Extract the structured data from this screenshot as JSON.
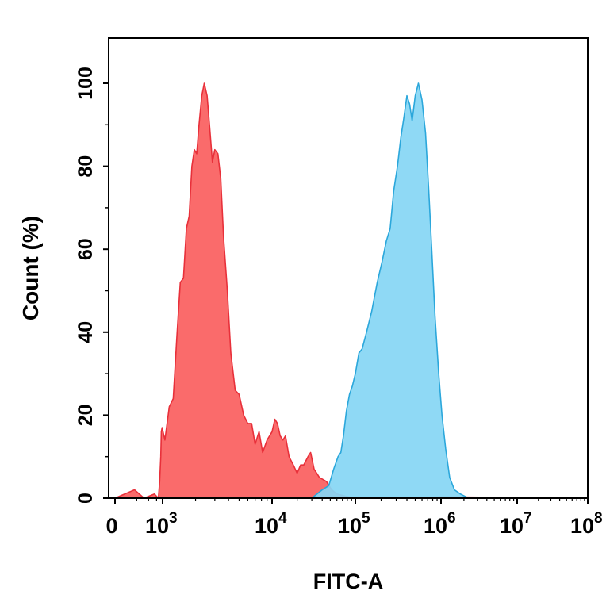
{
  "chart_data": {
    "type": "area",
    "title": "",
    "xlabel": "FITC-A",
    "ylabel": "Count (%)",
    "x_scale": "biexponential (log above 10^3)",
    "xlim": [
      0,
      100000000
    ],
    "ylim": [
      0,
      100
    ],
    "y_ticks": [
      "0",
      "20",
      "40",
      "60",
      "80",
      "100"
    ],
    "x_ticks": [
      {
        "value": 0,
        "base": "0",
        "exp": ""
      },
      {
        "value": 1000,
        "base": "10",
        "exp": "3"
      },
      {
        "value": 10000,
        "base": "10",
        "exp": "4"
      },
      {
        "value": 100000,
        "base": "10",
        "exp": "5"
      },
      {
        "value": 1000000,
        "base": "10",
        "exp": "6"
      },
      {
        "value": 10000000,
        "base": "10",
        "exp": "7"
      },
      {
        "value": 100000000,
        "base": "10",
        "exp": "8"
      }
    ],
    "grid": false,
    "legend": "none",
    "series": [
      {
        "color": "#fa6b6b",
        "stroke": "#e8303a",
        "points": [
          [
            0,
            0
          ],
          [
            80,
            2
          ],
          [
            200,
            0
          ],
          [
            500,
            1
          ],
          [
            700,
            0
          ],
          [
            780,
            4
          ],
          [
            860,
            10
          ],
          [
            900,
            16
          ],
          [
            960,
            17
          ],
          [
            1050,
            14
          ],
          [
            1150,
            22
          ],
          [
            1250,
            24
          ],
          [
            1350,
            39
          ],
          [
            1450,
            52
          ],
          [
            1550,
            53
          ],
          [
            1650,
            65
          ],
          [
            1750,
            68
          ],
          [
            1850,
            80
          ],
          [
            1950,
            84
          ],
          [
            2050,
            83
          ],
          [
            2150,
            90
          ],
          [
            2280,
            97
          ],
          [
            2400,
            100
          ],
          [
            2550,
            97
          ],
          [
            2700,
            89
          ],
          [
            2850,
            81
          ],
          [
            3000,
            84
          ],
          [
            3200,
            83
          ],
          [
            3400,
            77
          ],
          [
            3600,
            63
          ],
          [
            3900,
            50
          ],
          [
            4200,
            35
          ],
          [
            4600,
            26
          ],
          [
            5000,
            25
          ],
          [
            5500,
            20
          ],
          [
            6000,
            18
          ],
          [
            6500,
            18
          ],
          [
            7000,
            13
          ],
          [
            7600,
            16
          ],
          [
            8200,
            11
          ],
          [
            9000,
            14
          ],
          [
            10000,
            16
          ],
          [
            10800,
            19
          ],
          [
            11600,
            18
          ],
          [
            12500,
            15
          ],
          [
            13500,
            14
          ],
          [
            14500,
            15
          ],
          [
            16000,
            10
          ],
          [
            18000,
            8
          ],
          [
            20000,
            6
          ],
          [
            22000,
            8
          ],
          [
            24000,
            8
          ],
          [
            27000,
            10
          ],
          [
            29000,
            11
          ],
          [
            32000,
            7
          ],
          [
            37000,
            5
          ],
          [
            45000,
            4
          ],
          [
            52000,
            2
          ],
          [
            60000,
            1
          ],
          [
            75000,
            0.5
          ],
          [
            100000,
            0
          ],
          [
            300000,
            0
          ],
          [
            1000000,
            0.3
          ],
          [
            100000000,
            0
          ]
        ]
      },
      {
        "color": "#87d6f4",
        "stroke": "#2ba7db",
        "points": [
          [
            0,
            0
          ],
          [
            30000,
            0
          ],
          [
            40000,
            2
          ],
          [
            48000,
            3
          ],
          [
            55000,
            7
          ],
          [
            62000,
            10
          ],
          [
            67000,
            11
          ],
          [
            72000,
            15
          ],
          [
            78000,
            21
          ],
          [
            85000,
            25
          ],
          [
            92000,
            27
          ],
          [
            100000,
            30
          ],
          [
            110000,
            35
          ],
          [
            120000,
            36
          ],
          [
            135000,
            40
          ],
          [
            155000,
            45
          ],
          [
            180000,
            52
          ],
          [
            205000,
            57
          ],
          [
            230000,
            62
          ],
          [
            255000,
            65
          ],
          [
            280000,
            74
          ],
          [
            310000,
            80
          ],
          [
            340000,
            87
          ],
          [
            370000,
            92
          ],
          [
            400000,
            97
          ],
          [
            430000,
            95
          ],
          [
            460000,
            91
          ],
          [
            500000,
            97
          ],
          [
            545000,
            100
          ],
          [
            600000,
            96
          ],
          [
            660000,
            88
          ],
          [
            720000,
            74
          ],
          [
            780000,
            60
          ],
          [
            850000,
            44
          ],
          [
            940000,
            30
          ],
          [
            1030000,
            20
          ],
          [
            1150000,
            12
          ],
          [
            1300000,
            5
          ],
          [
            1500000,
            2
          ],
          [
            1800000,
            1
          ],
          [
            2300000,
            0
          ],
          [
            100000000,
            0
          ]
        ]
      }
    ]
  }
}
